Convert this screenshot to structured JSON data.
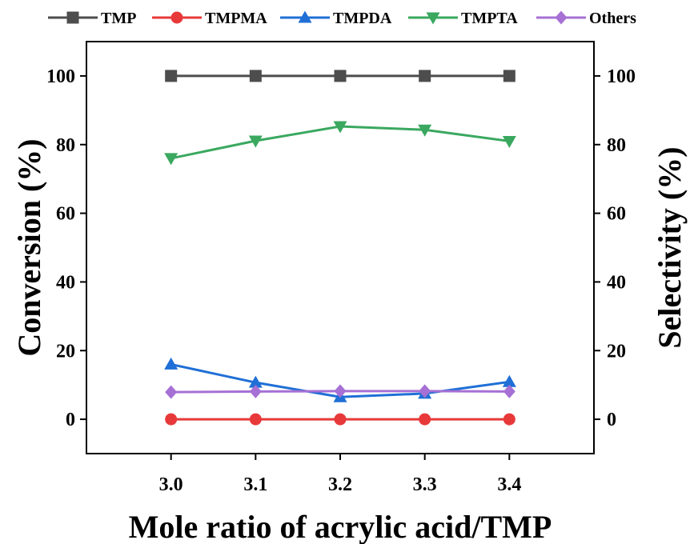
{
  "chart_data": {
    "type": "line",
    "x": [
      3.0,
      3.1,
      3.2,
      3.3,
      3.4
    ],
    "x_tick_labels": [
      "3.0",
      "3.1",
      "3.2",
      "3.3",
      "3.4"
    ],
    "xlim": [
      2.9,
      3.5
    ],
    "xlabel": "Mole ratio of acrylic acid/TMP",
    "ylabel_left": "Conversion (%)",
    "ylabel_right": "Selectivity (%)",
    "ylim": [
      -10,
      110
    ],
    "y_ticks": [
      0,
      20,
      40,
      60,
      80,
      100
    ],
    "y_tick_labels": [
      "0",
      "20",
      "40",
      "60",
      "80",
      "100"
    ],
    "legend_position": "top",
    "grid": false,
    "series": [
      {
        "name": "TMP",
        "marker": "square",
        "color": "#4d4d4d",
        "values": [
          100,
          100,
          100,
          100,
          100
        ]
      },
      {
        "name": "TMPMA",
        "marker": "circle",
        "color": "#e8393a",
        "values": [
          0,
          0,
          0,
          0,
          0
        ]
      },
      {
        "name": "TMPDA",
        "marker": "triangle-up",
        "color": "#1f6fd6",
        "values": [
          16.0,
          10.7,
          6.5,
          7.5,
          10.9
        ]
      },
      {
        "name": "TMPTA",
        "marker": "triangle-down",
        "color": "#3aa85f",
        "values": [
          76.0,
          81.1,
          85.3,
          84.3,
          81.0
        ]
      },
      {
        "name": "Others",
        "marker": "diamond",
        "color": "#a670d4",
        "values": [
          7.9,
          8.1,
          8.2,
          8.2,
          8.1
        ]
      }
    ]
  }
}
